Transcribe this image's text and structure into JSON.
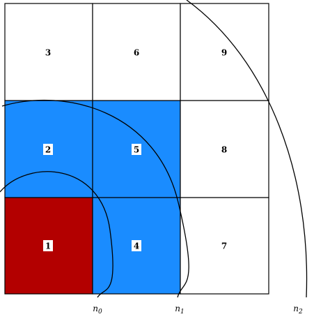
{
  "cells": [
    "1",
    "2",
    "3",
    "4",
    "5",
    "6",
    "7",
    "8",
    "9"
  ],
  "curve_labels": [
    {
      "base": "n",
      "sub": "0"
    },
    {
      "base": "n",
      "sub": "1"
    },
    {
      "base": "n",
      "sub": "2"
    }
  ]
}
